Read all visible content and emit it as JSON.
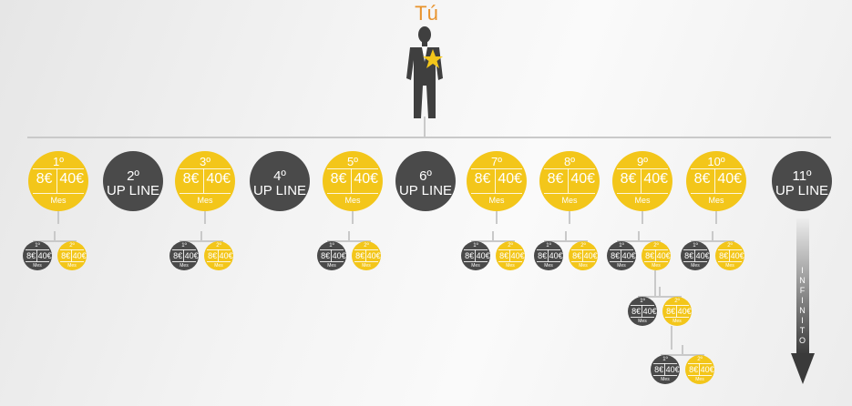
{
  "header": {
    "title": "Tú"
  },
  "colors": {
    "yellow": "#f3c61a",
    "dark": "#4a4a4a",
    "line": "#c9c9c9",
    "title": "#e8932c",
    "star": "#f3c61a"
  },
  "icons": {
    "person": "businesswoman-silhouette-icon",
    "star": "star-icon"
  },
  "level1": [
    {
      "kind": "earn",
      "label": "1º",
      "v1": "8€",
      "v2": "40€",
      "sub": "Mes"
    },
    {
      "kind": "upline",
      "label": "2º",
      "text": "UP LINE"
    },
    {
      "kind": "earn",
      "label": "3º",
      "v1": "8€",
      "v2": "40€",
      "sub": "Mes"
    },
    {
      "kind": "upline",
      "label": "4º",
      "text": "UP LINE"
    },
    {
      "kind": "earn",
      "label": "5º",
      "v1": "8€",
      "v2": "40€",
      "sub": "Mes"
    },
    {
      "kind": "upline",
      "label": "6º",
      "text": "UP LINE"
    },
    {
      "kind": "earn",
      "label": "7º",
      "v1": "8€",
      "v2": "40€",
      "sub": "Mes"
    },
    {
      "kind": "earn",
      "label": "8º",
      "v1": "8€",
      "v2": "40€",
      "sub": "Mes"
    },
    {
      "kind": "earn",
      "label": "9º",
      "v1": "8€",
      "v2": "40€",
      "sub": "Mes"
    },
    {
      "kind": "earn",
      "label": "10º",
      "v1": "8€",
      "v2": "40€",
      "sub": "Mes"
    },
    {
      "kind": "upline",
      "label": "11º",
      "text": "UP LINE"
    }
  ],
  "subnode_pair": [
    {
      "color": "dark",
      "label": "1º",
      "v1": "8€",
      "v2": "40€",
      "sub": "Mes"
    },
    {
      "color": "yellow",
      "label": "2º",
      "v1": "8€",
      "v2": "40€",
      "sub": "Mes"
    }
  ],
  "arrow": {
    "text": "INFINITO"
  }
}
